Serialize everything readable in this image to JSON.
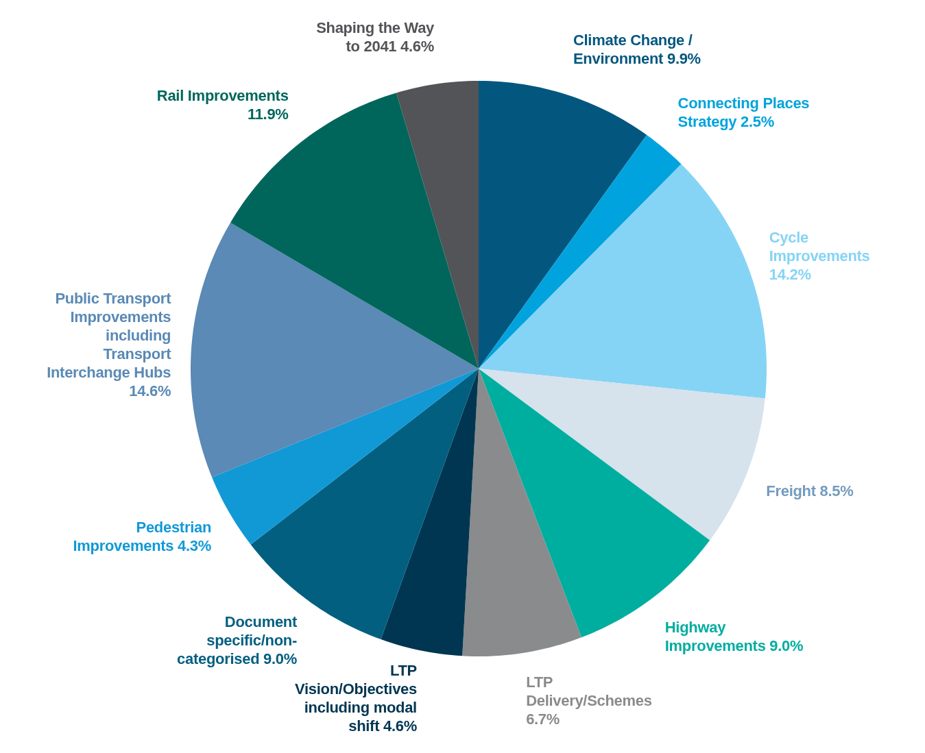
{
  "chart_data": {
    "type": "pie",
    "categories": [
      "Climate Change / Environment",
      "Connecting Places Strategy",
      "Cycle Improvements",
      "Freight",
      "Highway Improvements",
      "LTP Delivery/Schemes",
      "LTP Vision/Objectives including modal shift",
      "Document specific/non-categorised",
      "Pedestrian Improvements",
      "Public Transport Improvements including Transport Interchange Hubs",
      "Rail Improvements",
      "Shaping the Way to 2041"
    ],
    "values": [
      9.9,
      2.5,
      14.2,
      8.5,
      9.0,
      6.7,
      4.6,
      9.0,
      4.3,
      14.6,
      11.9,
      4.6
    ],
    "value_labels": [
      "9.9%",
      "2.5%",
      "14.2%",
      "8.5%",
      "9.0%",
      "6.7%",
      "4.6%",
      "9.0%",
      "4.3%",
      "14.6%",
      "11.9%",
      "4.6%"
    ],
    "colors": [
      "#03577f",
      "#00a3dd",
      "#85d4f5",
      "#d6e2ec",
      "#00aea0",
      "#8a8b8c",
      "#003651",
      "#025f80",
      "#1199d6",
      "#5a8ab5",
      "#00665c",
      "#535457"
    ]
  }
}
